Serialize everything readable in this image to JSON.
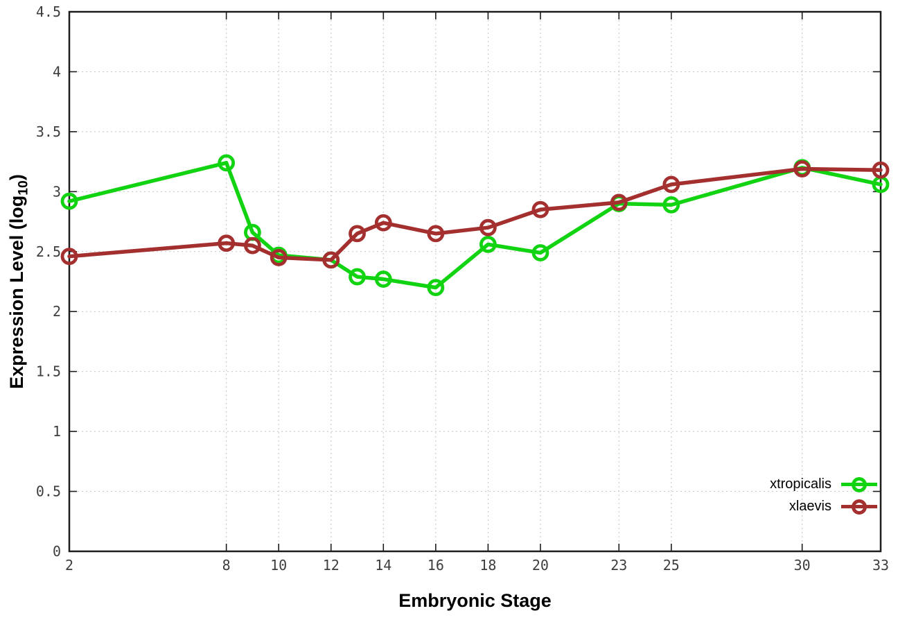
{
  "chart_data": {
    "type": "line",
    "title": "",
    "xlabel": "Embryonic Stage",
    "ylabel_parts": {
      "prefix": "Expression Level (log",
      "subscript": "10",
      "suffix": ")"
    },
    "x": [
      2,
      8,
      9,
      10,
      12,
      13,
      14,
      16,
      18,
      20,
      23,
      25,
      30,
      33
    ],
    "series": [
      {
        "name": "xtropicalis",
        "color": "#12d312",
        "values": [
          2.92,
          3.24,
          2.66,
          2.47,
          2.43,
          2.29,
          2.27,
          2.2,
          2.56,
          2.49,
          2.9,
          2.89,
          3.2,
          3.06
        ]
      },
      {
        "name": "xlaevis",
        "color": "#a42f2f",
        "values": [
          2.46,
          2.57,
          2.55,
          2.45,
          2.43,
          2.65,
          2.74,
          2.65,
          2.7,
          2.85,
          2.91,
          3.06,
          3.19,
          3.18
        ]
      }
    ],
    "xticks": [
      2,
      8,
      10,
      12,
      14,
      16,
      18,
      20,
      23,
      25,
      30,
      33
    ],
    "yticks": [
      0,
      0.5,
      1,
      1.5,
      2,
      2.5,
      3,
      3.5,
      4,
      4.5
    ],
    "xlim": [
      2,
      33
    ],
    "ylim": [
      0,
      4.5
    ],
    "grid": true,
    "grid_style": "dotted",
    "legend_position": "inside-bottom-right",
    "marker": "open-circle",
    "colors": {
      "background": "#ffffff",
      "axis": "#1c1c1c",
      "grid": "#c4c4c4",
      "tick_label": "#3d3d3d"
    }
  }
}
